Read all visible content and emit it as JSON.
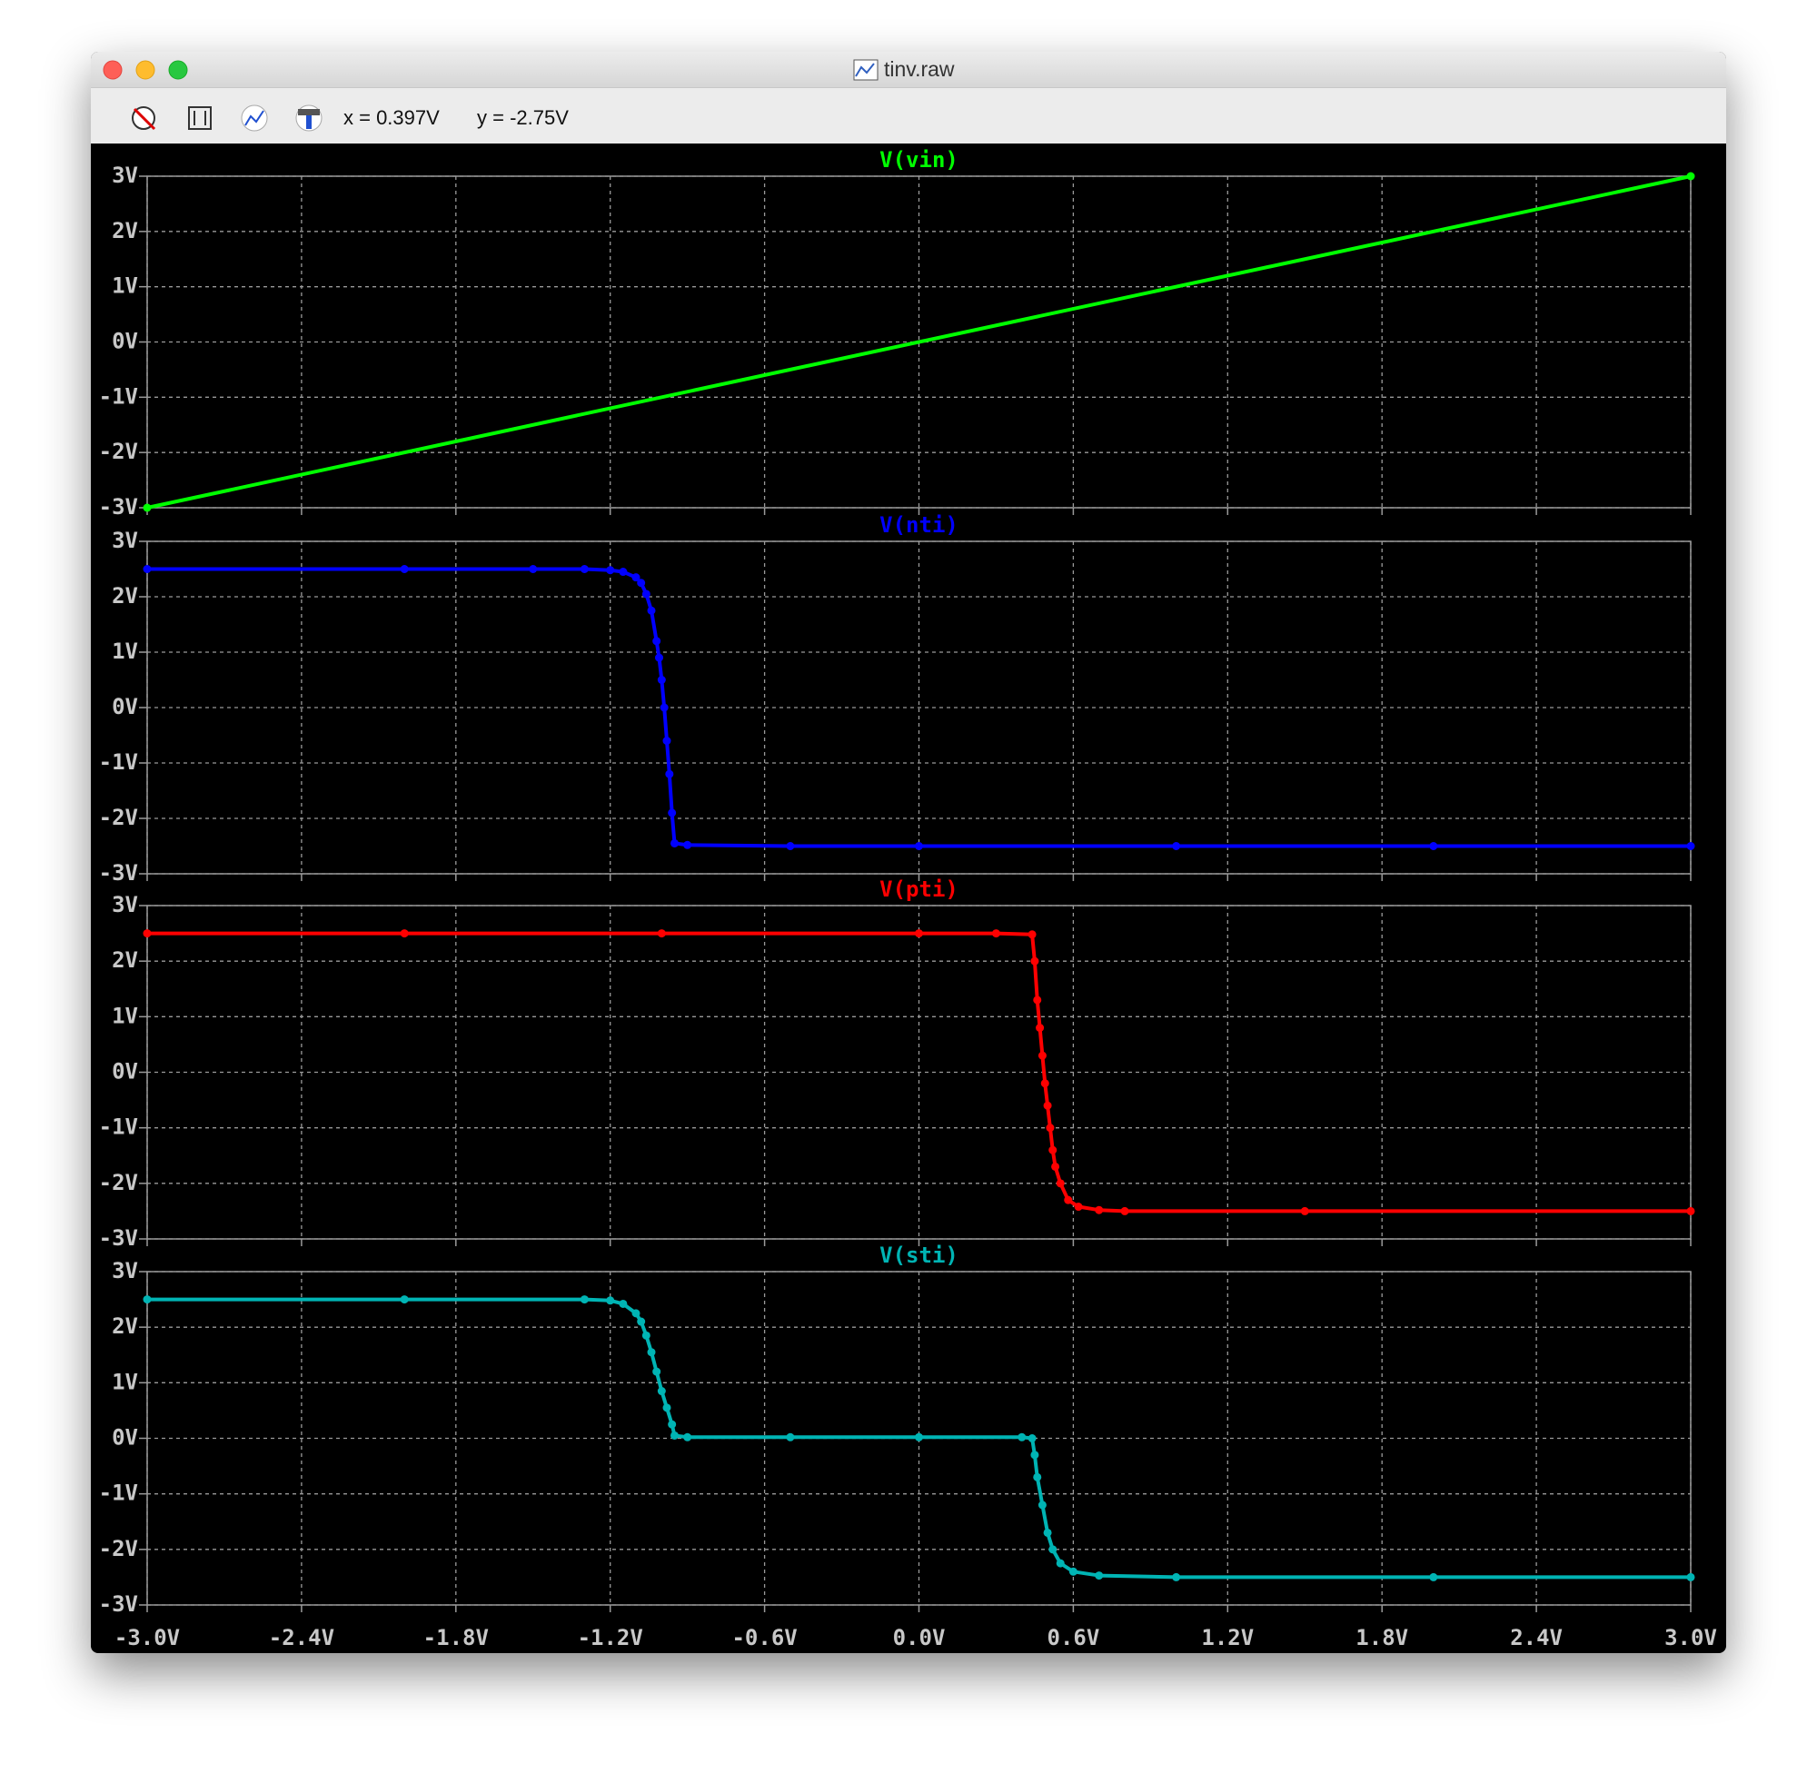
{
  "window": {
    "title": "tinv.raw",
    "cursor_x": "x = 0.397V",
    "cursor_y": "y = -2.75V"
  },
  "chart_data": [
    {
      "type": "line",
      "title": "V(vin)",
      "color": "#00ff00",
      "x": [
        -3,
        3
      ],
      "values": [
        -3,
        3
      ],
      "ylim": [
        -3,
        3
      ],
      "grid": true,
      "yticks": [
        {
          "value": 3,
          "label": "3V"
        },
        {
          "value": 2,
          "label": "2V"
        },
        {
          "value": 1,
          "label": "1V"
        },
        {
          "value": 0,
          "label": "0V"
        },
        {
          "value": -1,
          "label": "-1V"
        },
        {
          "value": -2,
          "label": "-2V"
        },
        {
          "value": -3,
          "label": "-3V"
        }
      ]
    },
    {
      "type": "line",
      "title": "V(nti)",
      "color": "#0000ff",
      "x": [
        -3,
        -2,
        -1.5,
        -1.3,
        -1.2,
        -1.15,
        -1.1,
        -1.08,
        -1.06,
        -1.04,
        -1.02,
        -1.01,
        -1.0,
        -0.99,
        -0.98,
        -0.97,
        -0.96,
        -0.95,
        -0.9,
        -0.5,
        0,
        1,
        2,
        3
      ],
      "values": [
        2.5,
        2.5,
        2.5,
        2.5,
        2.48,
        2.45,
        2.35,
        2.25,
        2.05,
        1.75,
        1.2,
        0.9,
        0.5,
        0,
        -0.6,
        -1.2,
        -1.9,
        -2.45,
        -2.48,
        -2.5,
        -2.5,
        -2.5,
        -2.5,
        -2.5
      ],
      "ylim": [
        -3,
        3
      ],
      "grid": true,
      "yticks": [
        {
          "value": 3,
          "label": "3V"
        },
        {
          "value": 2,
          "label": "2V"
        },
        {
          "value": 1,
          "label": "1V"
        },
        {
          "value": 0,
          "label": "0V"
        },
        {
          "value": -1,
          "label": "-1V"
        },
        {
          "value": -2,
          "label": "-2V"
        },
        {
          "value": -3,
          "label": "-3V"
        }
      ]
    },
    {
      "type": "line",
      "title": "V(pti)",
      "color": "#ff0000",
      "x": [
        -3,
        -2,
        -1,
        0,
        0.3,
        0.44,
        0.45,
        0.46,
        0.47,
        0.48,
        0.49,
        0.5,
        0.51,
        0.52,
        0.53,
        0.55,
        0.58,
        0.62,
        0.7,
        0.8,
        1.5,
        3
      ],
      "values": [
        2.5,
        2.5,
        2.5,
        2.5,
        2.5,
        2.48,
        2.0,
        1.3,
        0.8,
        0.3,
        -0.2,
        -0.6,
        -1.0,
        -1.4,
        -1.7,
        -2.0,
        -2.3,
        -2.42,
        -2.48,
        -2.5,
        -2.5,
        -2.5
      ],
      "ylim": [
        -3,
        3
      ],
      "grid": true,
      "yticks": [
        {
          "value": 3,
          "label": "3V"
        },
        {
          "value": 2,
          "label": "2V"
        },
        {
          "value": 1,
          "label": "1V"
        },
        {
          "value": 0,
          "label": "0V"
        },
        {
          "value": -1,
          "label": "-1V"
        },
        {
          "value": -2,
          "label": "-2V"
        },
        {
          "value": -3,
          "label": "-3V"
        }
      ]
    },
    {
      "type": "line",
      "title": "V(sti)",
      "color": "#00b4b4",
      "x": [
        -3,
        -2,
        -1.3,
        -1.2,
        -1.15,
        -1.1,
        -1.08,
        -1.06,
        -1.04,
        -1.02,
        -1.0,
        -0.98,
        -0.96,
        -0.95,
        -0.9,
        -0.5,
        0,
        0.4,
        0.44,
        0.45,
        0.46,
        0.48,
        0.5,
        0.52,
        0.55,
        0.6,
        0.7,
        1,
        2,
        3
      ],
      "values": [
        2.5,
        2.5,
        2.5,
        2.48,
        2.42,
        2.25,
        2.1,
        1.85,
        1.55,
        1.2,
        0.85,
        0.55,
        0.25,
        0.05,
        0.02,
        0.02,
        0.02,
        0.02,
        0.0,
        -0.3,
        -0.7,
        -1.2,
        -1.7,
        -2.0,
        -2.25,
        -2.4,
        -2.47,
        -2.5,
        -2.5,
        -2.5
      ],
      "ylim": [
        -3,
        3
      ],
      "grid": true,
      "yticks": [
        {
          "value": 3,
          "label": "3V"
        },
        {
          "value": 2,
          "label": "2V"
        },
        {
          "value": 1,
          "label": "1V"
        },
        {
          "value": 0,
          "label": "0V"
        },
        {
          "value": -1,
          "label": "-1V"
        },
        {
          "value": -2,
          "label": "-2V"
        },
        {
          "value": -3,
          "label": "-3V"
        }
      ],
      "xlim": [
        -3,
        3
      ],
      "xticks": [
        {
          "value": -3,
          "label": "-3.0V"
        },
        {
          "value": -2.4,
          "label": "-2.4V"
        },
        {
          "value": -1.8,
          "label": "-1.8V"
        },
        {
          "value": -1.2,
          "label": "-1.2V"
        },
        {
          "value": -0.6,
          "label": "-0.6V"
        },
        {
          "value": 0,
          "label": "0.0V"
        },
        {
          "value": 0.6,
          "label": "0.6V"
        },
        {
          "value": 1.2,
          "label": "1.2V"
        },
        {
          "value": 1.8,
          "label": "1.8V"
        },
        {
          "value": 2.4,
          "label": "2.4V"
        },
        {
          "value": 3,
          "label": "3.0V"
        }
      ]
    }
  ]
}
